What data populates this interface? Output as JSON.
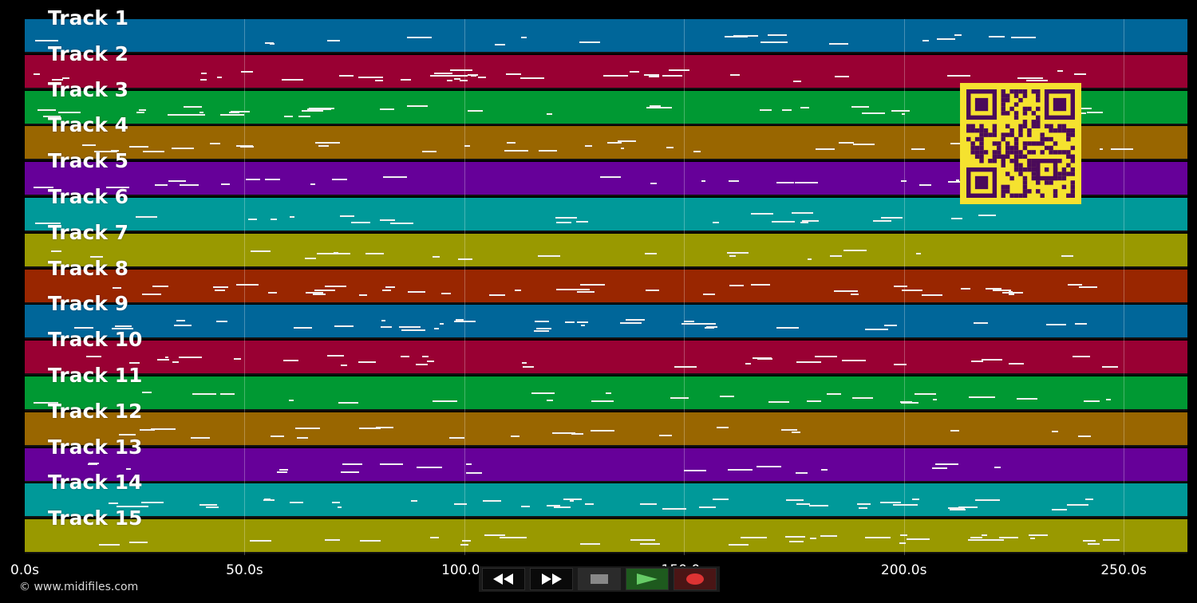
{
  "tracks": [
    {
      "label": "Track 1",
      "color": "#006699"
    },
    {
      "label": "Track 2",
      "color": "#990033"
    },
    {
      "label": "Track 3",
      "color": "#009933"
    },
    {
      "label": "Track 4",
      "color": "#996600"
    },
    {
      "label": "Track 5",
      "color": "#660099"
    },
    {
      "label": "Track 6",
      "color": "#009999"
    },
    {
      "label": "Track 7",
      "color": "#999900"
    },
    {
      "label": "Track 8",
      "color": "#992600"
    },
    {
      "label": "Track 9",
      "color": "#006699"
    },
    {
      "label": "Track 10",
      "color": "#990033"
    },
    {
      "label": "Track 11",
      "color": "#009933"
    },
    {
      "label": "Track 12",
      "color": "#996600"
    },
    {
      "label": "Track 13",
      "color": "#660099"
    },
    {
      "label": "Track 14",
      "color": "#009999"
    },
    {
      "label": "Track 15",
      "color": "#999900"
    }
  ],
  "timeline": {
    "max_seconds": 264.5,
    "ticks": [
      {
        "seconds": 0,
        "label": "0.0s"
      },
      {
        "seconds": 50,
        "label": "50.0s"
      },
      {
        "seconds": 100,
        "label": "100.0s"
      },
      {
        "seconds": 150,
        "label": "150.0s"
      },
      {
        "seconds": 200,
        "label": "200.0s"
      },
      {
        "seconds": 250,
        "label": "250.0s"
      }
    ]
  },
  "copyright": "© www.midifiles.com",
  "transport": {
    "rewind_icon": "rewind-icon",
    "forward_icon": "fast-forward-icon",
    "stop_icon": "stop-icon",
    "play_icon": "play-icon",
    "record_icon": "record-icon",
    "play_color": "#66cc66",
    "record_color": "#dd3333"
  },
  "qr_colors": {
    "background": "#f5e22f",
    "modules": "#4a0a5a"
  }
}
